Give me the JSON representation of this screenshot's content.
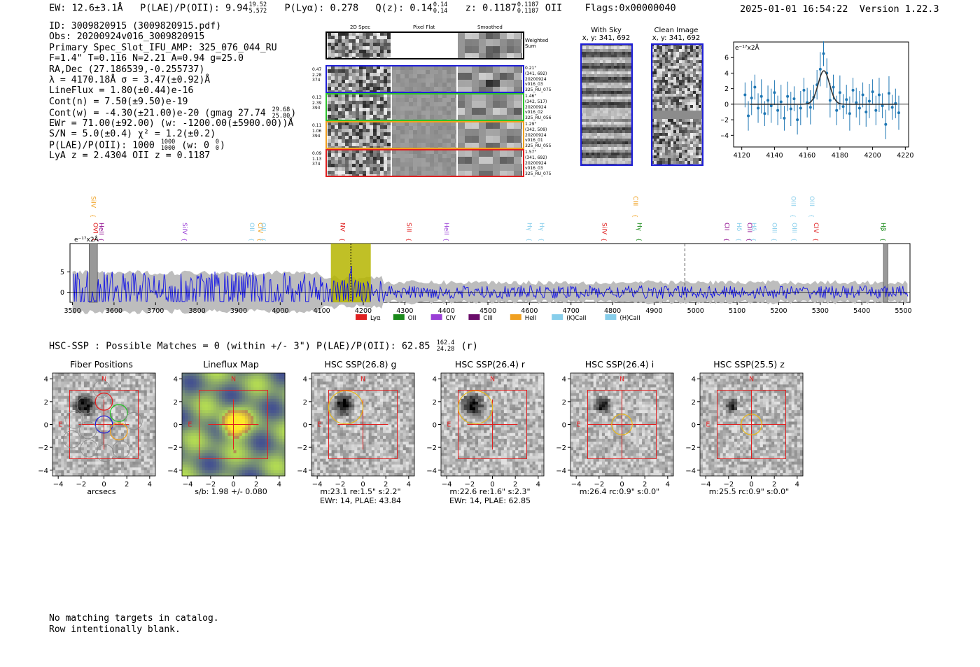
{
  "header": {
    "ew": "EW: 12.6±3.1Å",
    "plae_label": "P(LAE)/P(OII): 9.94",
    "plae_hi": "19.52",
    "plae_lo": "5.572",
    "plya": "P(Lyα): 0.278",
    "qz_label": "Q(z): 0.14",
    "qz_hi": "0.14",
    "qz_lo": "0.14",
    "z_label": "z: 0.1187",
    "z_hi": "0.1187",
    "z_lo": "0.1187",
    "z_line": "OII",
    "flags": "Flags:0x00000040",
    "datetime": "2025-01-01 16:54:22",
    "version": "Version 1.22.3"
  },
  "info": {
    "id": "ID: 3009820915 (3009820915.pdf)",
    "obs": "Obs: 20200924v016_3009820915",
    "primary": "Primary Spec_Slot_IFU_AMP: 325_076_044_RU",
    "fiber_params": "F=1.4\"  T=0.116  N=2.21  A=0.94  g=25.0",
    "radec": "RA,Dec (27.186539,-0.255737)",
    "lambda_sigma": "λ = 4170.18Å   σ = 3.47(±0.92)Å",
    "lineflux": "LineFlux = 1.80(±0.44)e-16",
    "contn": "Cont(n) = 7.50(±9.50)e-19",
    "contw_label": "Cont(w) = -4.30(±21.00)e-20 (gmag 27.74",
    "contw_hi": "29.68",
    "contw_lo": "25.80",
    "contw_close": ")",
    "ewr": "EWr = 71.00(±92.00) (w: -1200.00(±5900.00))Å",
    "sn_chi": "S/N = 5.0(±0.4)  χ² = 1.2(±0.2)",
    "plae_label": "P(LAE)/P(OII): 1000",
    "plae_hi": "1000",
    "plae_lo": "1000",
    "plae_w": "(w: 0",
    "plae_w_hi": "0",
    "plae_w_lo": "0",
    "plae_close": ")",
    "lya_z": "LyA z = 2.4304   OII z = 0.1187"
  },
  "spec_panel": {
    "col_2d": "2D Spec",
    "col_flat": "Pixel Flat",
    "col_smooth": "Smoothed",
    "weighted_sum": "Weighted\nSum",
    "rows": [
      {
        "left": [
          "0.47",
          "2.28",
          "374"
        ],
        "right": [
          "0.21\"",
          "(341, 692)",
          "20200924",
          "v016_03",
          "325_RU_075"
        ],
        "color": "#1f1fd6"
      },
      {
        "left": [
          "0.13",
          "2.39",
          "393"
        ],
        "right": [
          "1.46\"",
          "(342, 517)",
          "20200924",
          "v016_02",
          "325_RU_056"
        ],
        "color": "#2cc12c"
      },
      {
        "left": [
          "0.11",
          "1.06",
          "394"
        ],
        "right": [
          "1.29\"",
          "(342, 509)",
          "20200924",
          "v016_01",
          "325_RU_055"
        ],
        "color": "#f0a020"
      },
      {
        "left": [
          "0.09",
          "1.13",
          "374"
        ],
        "right": [
          "1.57\"",
          "(341, 692)",
          "20200924",
          "v016_03",
          "325_RU_075"
        ],
        "color": "#e02020"
      }
    ]
  },
  "cutouts": {
    "with_sky": "With Sky",
    "with_sky_xy": "x, y: 341, 692",
    "clean": "Clean Image",
    "clean_xy": "x, y: 341, 692"
  },
  "fit_plot": {
    "unit": "e⁻¹⁷x2Å",
    "xticks": [
      "4120",
      "4140",
      "4160",
      "4180",
      "4200",
      "4220"
    ],
    "yticks": [
      "6",
      "4",
      "2",
      "0",
      "−2",
      "−4"
    ],
    "points": [
      [
        4122,
        1.2
      ],
      [
        4124,
        -1.5
      ],
      [
        4126,
        0.8
      ],
      [
        4128,
        2.2
      ],
      [
        4130,
        -0.5
      ],
      [
        4132,
        1.0
      ],
      [
        4134,
        -1.2
      ],
      [
        4136,
        0.5
      ],
      [
        4138,
        -0.2
      ],
      [
        4140,
        1.5
      ],
      [
        4142,
        -0.8
      ],
      [
        4144,
        0.3
      ],
      [
        4146,
        -1.8
      ],
      [
        4148,
        1.0
      ],
      [
        4150,
        -0.6
      ],
      [
        4152,
        0.7
      ],
      [
        4154,
        -2.0
      ],
      [
        4156,
        -0.5
      ],
      [
        4158,
        1.8
      ],
      [
        4160,
        0.2
      ],
      [
        4162,
        -0.4
      ],
      [
        4164,
        0.9
      ],
      [
        4166,
        2.5
      ],
      [
        4168,
        4.5
      ],
      [
        4170,
        6.5
      ],
      [
        4172,
        4.0
      ],
      [
        4174,
        0.5
      ],
      [
        4176,
        2.2
      ],
      [
        4178,
        -0.8
      ],
      [
        4180,
        1.5
      ],
      [
        4182,
        -0.3
      ],
      [
        4184,
        0.6
      ],
      [
        4186,
        -1.2
      ],
      [
        4188,
        1.8
      ],
      [
        4190,
        0.2
      ],
      [
        4192,
        -0.5
      ],
      [
        4194,
        1.2
      ],
      [
        4196,
        -1.0
      ],
      [
        4198,
        0.4
      ],
      [
        4200,
        1.6
      ],
      [
        4202,
        -0.8
      ],
      [
        4204,
        1.2
      ],
      [
        4206,
        -0.2
      ],
      [
        4208,
        -2.6
      ],
      [
        4210,
        1.4
      ],
      [
        4212,
        -0.4
      ],
      [
        4214,
        0.1
      ],
      [
        4216,
        -1.1
      ]
    ]
  },
  "line_labels": [
    {
      "name": "SiIV",
      "color": "#f0a020",
      "x": 3540,
      "row": 0
    },
    {
      "name": "OVI",
      "color": "#e02020",
      "x": 3545,
      "row": 1
    },
    {
      "name": "HeII",
      "color": "#8a008a",
      "x": 3560,
      "row": 1
    },
    {
      "name": "SiIV",
      "color": "#9a3fd6",
      "x": 3760,
      "row": 1
    },
    {
      "name": "OII",
      "color": "#87ceeb",
      "x": 3922,
      "row": 1
    },
    {
      "name": "CIV",
      "color": "#f0a020",
      "x": 3942,
      "row": 1
    },
    {
      "name": "OII",
      "color": "#87ceeb",
      "x": 3950,
      "row": 1
    },
    {
      "name": "NV",
      "color": "#e02020",
      "x": 4140,
      "row": 1
    },
    {
      "name": "SiII",
      "color": "#e02020",
      "x": 4300,
      "row": 1
    },
    {
      "name": "HeII",
      "color": "#9a3fd6",
      "x": 4390,
      "row": 1
    },
    {
      "name": "Hγ",
      "color": "#87ceeb",
      "x": 4590,
      "row": 1
    },
    {
      "name": "Hγ",
      "color": "#87ceeb",
      "x": 4620,
      "row": 1
    },
    {
      "name": "SiIV",
      "color": "#e02020",
      "x": 4770,
      "row": 1
    },
    {
      "name": "CIII",
      "color": "#f0a020",
      "x": 4845,
      "row": 0
    },
    {
      "name": "Hγ",
      "color": "#1a8a1a",
      "x": 4855,
      "row": 1
    },
    {
      "name": "CII",
      "color": "#8a008a",
      "x": 5065,
      "row": 1
    },
    {
      "name": "Hδ",
      "color": "#87ceeb",
      "x": 5095,
      "row": 1
    },
    {
      "name": "CIII",
      "color": "#8a008a",
      "x": 5120,
      "row": 1
    },
    {
      "name": "Hδ",
      "color": "#87ceeb",
      "x": 5130,
      "row": 1
    },
    {
      "name": "OIII",
      "color": "#87ceeb",
      "x": 5180,
      "row": 1
    },
    {
      "name": "OIII",
      "color": "#87ceeb",
      "x": 5225,
      "row": 0
    },
    {
      "name": "OIII",
      "color": "#87ceeb",
      "x": 5228,
      "row": 1
    },
    {
      "name": "OIII",
      "color": "#87ceeb",
      "x": 5270,
      "row": 0
    },
    {
      "name": "CIV",
      "color": "#e02020",
      "x": 5280,
      "row": 1
    },
    {
      "name": "Hβ",
      "color": "#1a8a1a",
      "x": 5442,
      "row": 1
    }
  ],
  "wide_spec": {
    "unit": "e⁻¹⁷x2Å",
    "xticks": [
      "3500",
      "3600",
      "3700",
      "3800",
      "3900",
      "4000",
      "4100",
      "4200",
      "4300",
      "4400",
      "4500",
      "4600",
      "4700",
      "4800",
      "4900",
      "5000",
      "5100",
      "5200",
      "5300",
      "5400",
      "5500"
    ],
    "yticks": [
      "5",
      "0"
    ],
    "legend": [
      {
        "label": "Lyα",
        "color": "#e02020"
      },
      {
        "label": "OII",
        "color": "#1a8a1a"
      },
      {
        "label": "CIV",
        "color": "#9a3fd6"
      },
      {
        "label": "CIII",
        "color": "#6a0d6a"
      },
      {
        "label": "HeII",
        "color": "#f0a020"
      },
      {
        "label": "(K)CaII",
        "color": "#87ceeb"
      },
      {
        "label": "(H)CaII",
        "color": "#87ceeb"
      }
    ]
  },
  "hsc": {
    "summary_label": "HSC-SSP : Possible Matches = 0 (within +/- 3\")  P(LAE)/P(OII): 62.85",
    "summary_hi": "162.4",
    "summary_lo": "24.28",
    "summary_band": "(r)",
    "panels": [
      {
        "title": "Fiber Positions",
        "cap1": "arcsecs",
        "cap2": ""
      },
      {
        "title": "Lineflux Map",
        "cap1": "s/b: 1.98 +/- 0.080",
        "cap2": ""
      },
      {
        "title": "HSC SSP(26.8) g",
        "cap1": "m:23.1  re:1.5\"  s:2.2\"",
        "cap2": "EWr: 14, PLAE: 43.84"
      },
      {
        "title": "HSC SSP(26.4) r",
        "cap1": "m:22.6  re:1.6\"  s:2.3\"",
        "cap2": "EWr: 14, PLAE: 62.85"
      },
      {
        "title": "HSC SSP(26.4) i",
        "cap1": "m:26.4 rc:0.9\"  s:0.0\"",
        "cap2": ""
      },
      {
        "title": "HSC SSP(25.5) z",
        "cap1": "m:25.5 rc:0.9\"  s:0.0\"",
        "cap2": ""
      }
    ],
    "axis_ticks": [
      "4",
      "2",
      "0",
      "−2",
      "−4"
    ],
    "x_ticks": [
      "−4",
      "−2",
      "0",
      "2",
      "4"
    ],
    "north": "N",
    "east": "E"
  },
  "footer": {
    "line1": "No matching targets in catalog.",
    "line2": "Row intentionally blank."
  }
}
